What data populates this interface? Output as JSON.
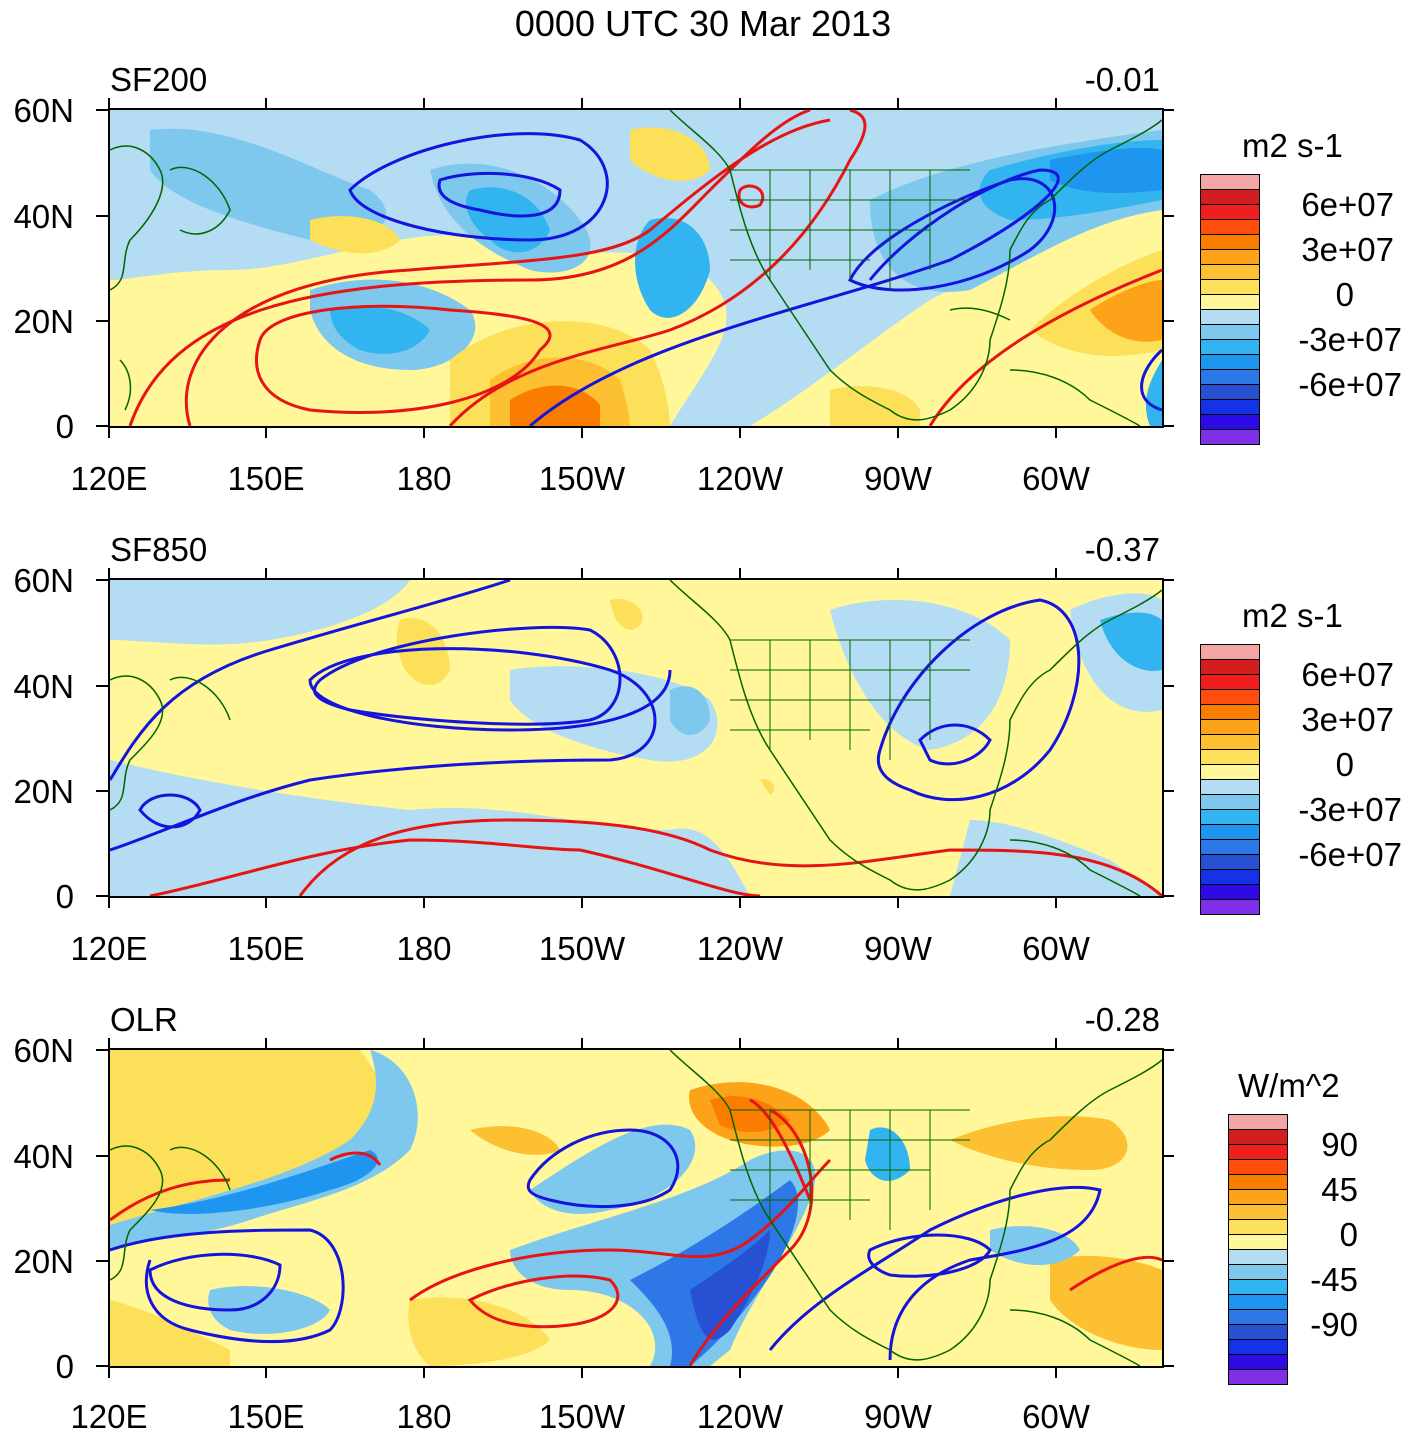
{
  "title": "0000 UTC 30 Mar 2013",
  "x_ticks": [
    "120E",
    "150E",
    "180",
    "150W",
    "120W",
    "90W",
    "60W"
  ],
  "y_ticks": [
    "60N",
    "40N",
    "20N",
    "0"
  ],
  "colors": {
    "shade_scale": [
      "#f4a6a6",
      "#d21e1e",
      "#f01e1e",
      "#ff4d0d",
      "#fa7d00",
      "#fca31a",
      "#fdc032",
      "#fde05a",
      "#fff799",
      "#b4dcf2",
      "#7ec8ee",
      "#32b4f0",
      "#1e96f0",
      "#2d78e6",
      "#2850d2",
      "#1432e6",
      "#2d0ae6",
      "#7f2fe6"
    ],
    "contour_positive": "#e61414",
    "contour_negative": "#1414dc",
    "coastline": "#006400"
  },
  "panels": [
    {
      "name": "SF200",
      "label": "SF200",
      "correlation": "-0.01",
      "units": "m2 s-1",
      "legend_labels": [
        "6e+07",
        "3e+07",
        "0",
        "-3e+07",
        "-6e+07"
      ]
    },
    {
      "name": "SF850",
      "label": "SF850",
      "correlation": "-0.37",
      "units": "m2 s-1",
      "legend_labels": [
        "6e+07",
        "3e+07",
        "0",
        "-3e+07",
        "-6e+07"
      ]
    },
    {
      "name": "OLR",
      "label": "OLR",
      "correlation": "-0.28",
      "units": "W/m^2",
      "legend_labels": [
        "90",
        "45",
        "0",
        "-45",
        "-90"
      ]
    }
  ]
}
